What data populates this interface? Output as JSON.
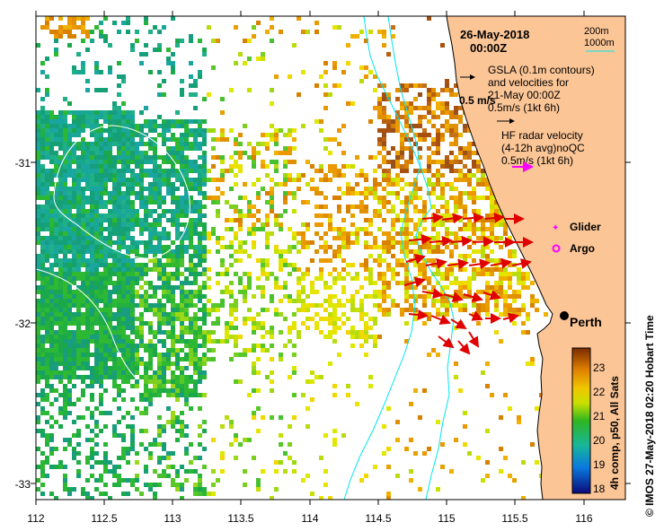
{
  "header": {
    "date": "26-May-2018",
    "time": "00:00Z",
    "contour_200": "200m",
    "contour_1000": "1000m"
  },
  "legend": {
    "gsla_line1": "GSLA (0.1m contours)",
    "gsla_line2": "and velocities for",
    "gsla_line3": "21-May 00:00Z",
    "gsla_scale": "0.5m/s (1kt 6h)",
    "overlay_label": "0.5 m/s",
    "hf_line1": "HF radar velocity",
    "hf_line2": "(4-12h avg)noQC",
    "hf_scale": "0.5m/s (1kt 6h)",
    "glider": "Glider",
    "argo": "Argo",
    "city": "Perth"
  },
  "colorbar": {
    "ticks": [
      "23",
      "22",
      "21",
      "20",
      "19",
      "18"
    ],
    "title": "4h comp, p50, All Sats"
  },
  "credit": "© IMOS 27-May-2018 02:20 Hobart Time",
  "axes": {
    "xticks": [
      "112",
      "112.5",
      "113",
      "113.5",
      "114",
      "114.5",
      "115",
      "115.5",
      "116"
    ],
    "yticks": [
      "-31",
      "-32",
      "-33"
    ]
  },
  "colors": {
    "land": "#fbc596",
    "bathy": "#00e6f0",
    "arrow": "#e00000",
    "hf_arrow": "#ff00ff"
  }
}
